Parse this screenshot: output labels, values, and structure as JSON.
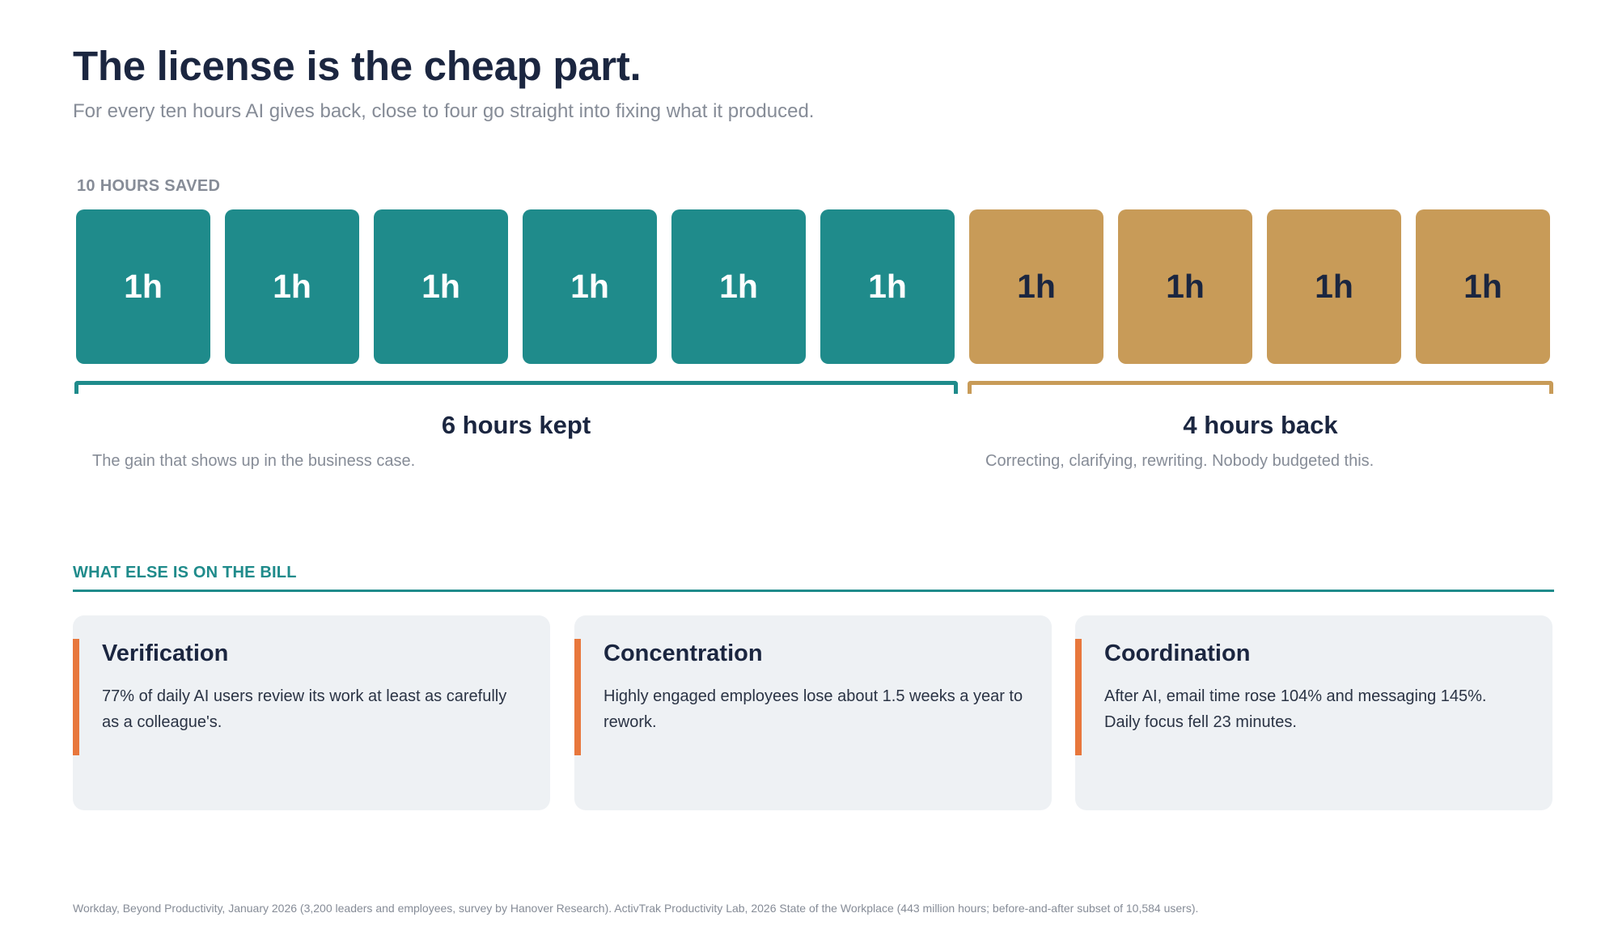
{
  "header": {
    "title": "The license is the cheap part.",
    "subtitle": "For every ten hours AI gives back, close to four go straight into fixing what it produced."
  },
  "hours": {
    "label": "10 HOURS SAVED",
    "blocks": [
      {
        "label": "1h",
        "group": "kept"
      },
      {
        "label": "1h",
        "group": "kept"
      },
      {
        "label": "1h",
        "group": "kept"
      },
      {
        "label": "1h",
        "group": "kept"
      },
      {
        "label": "1h",
        "group": "kept"
      },
      {
        "label": "1h",
        "group": "kept"
      },
      {
        "label": "1h",
        "group": "back"
      },
      {
        "label": "1h",
        "group": "back"
      },
      {
        "label": "1h",
        "group": "back"
      },
      {
        "label": "1h",
        "group": "back"
      }
    ],
    "kept": {
      "title": "6 hours kept",
      "description": "The gain that shows up in the business case.",
      "color": "#1f8b8b"
    },
    "back": {
      "title": "4 hours back",
      "description": "Correcting, clarifying, rewriting. Nobody budgeted this.",
      "color": "#c89b58"
    }
  },
  "bill": {
    "heading": "WHAT ELSE IS ON THE BILL",
    "accent_color": "#e8773c",
    "cards": [
      {
        "title": "Verification",
        "body": "77% of daily AI users review its work at least as carefully as a colleague's."
      },
      {
        "title": "Concentration",
        "body": "Highly engaged employees lose about 1.5 weeks a year to rework."
      },
      {
        "title": "Coordination",
        "body": "After AI, email time rose 104% and messaging 145%. Daily focus fell 23 minutes."
      }
    ]
  },
  "footnote": "Workday, Beyond Productivity, January 2026 (3,200 leaders and employees, survey by Hanover Research).  ActivTrak Productivity Lab, 2026 State of the Workplace (443 million hours; before-and-after subset of 10,584 users)."
}
